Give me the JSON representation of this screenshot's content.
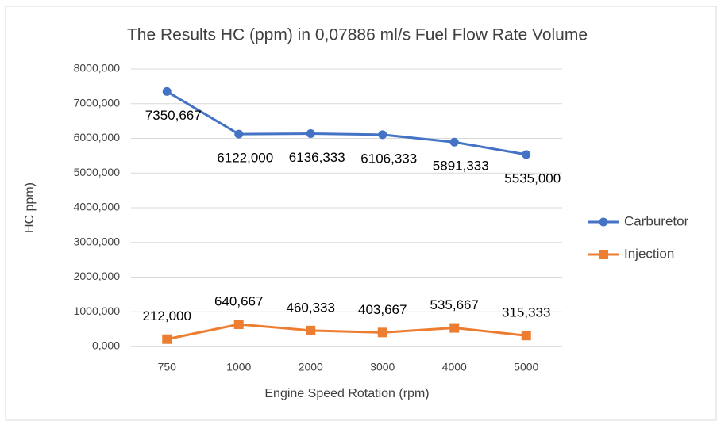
{
  "chart_data": {
    "type": "line",
    "title": "The Results HC (ppm) in 0,07886 ml/s Fuel Flow Rate Volume",
    "x_label": "Engine Speed Rotation (rpm)",
    "y_label": "HC ppm)",
    "categories": [
      "750",
      "1000",
      "2000",
      "3000",
      "4000",
      "5000"
    ],
    "series": [
      {
        "name": "Carburetor",
        "color": "#4472c4",
        "marker": "circle",
        "values": [
          7350.667,
          6122.0,
          6136.333,
          6106.333,
          5891.333,
          5535.0
        ],
        "value_labels": [
          "7350,667",
          "6122,000",
          "6136,333",
          "6106,333",
          "5891,333",
          "5535,000"
        ]
      },
      {
        "name": "Injection",
        "color": "#ed7d31",
        "marker": "square",
        "values": [
          212.0,
          640.667,
          460.333,
          403.667,
          535.667,
          315.333
        ],
        "value_labels": [
          "212,000",
          "640,667",
          "460,333",
          "403,667",
          "535,667",
          "315,333"
        ]
      }
    ],
    "ylim": [
      0,
      8000
    ],
    "yticks": [
      {
        "value": 0,
        "label": "0,000"
      },
      {
        "value": 1000,
        "label": "1000,000"
      },
      {
        "value": 2000,
        "label": "2000,000"
      },
      {
        "value": 3000,
        "label": "3000,000"
      },
      {
        "value": 4000,
        "label": "4000,000"
      },
      {
        "value": 5000,
        "label": "5000,000"
      },
      {
        "value": 6000,
        "label": "6000,000"
      },
      {
        "value": 7000,
        "label": "7000,000"
      },
      {
        "value": 8000,
        "label": "8000,000"
      }
    ],
    "grid": true,
    "legend": "right"
  }
}
